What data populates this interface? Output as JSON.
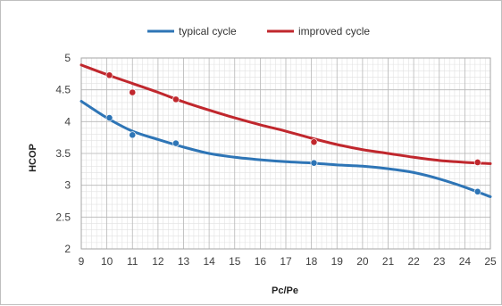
{
  "chart_data": {
    "type": "line",
    "xlabel": "Pc/Pe",
    "ylabel": "HCOP",
    "xlim": [
      9,
      25
    ],
    "ylim": [
      2,
      5
    ],
    "x_ticks": [
      9,
      10,
      11,
      12,
      13,
      14,
      15,
      16,
      17,
      18,
      19,
      20,
      21,
      22,
      23,
      24,
      25
    ],
    "y_ticks": [
      "2",
      "2.5",
      "3",
      "3.5",
      "4",
      "4.5",
      "5"
    ],
    "grid": true,
    "legend_position": "top",
    "series": [
      {
        "name": "typical cycle",
        "color": "#2e75b6",
        "points": [
          {
            "x": 10.1,
            "y": 4.06
          },
          {
            "x": 11.0,
            "y": 3.79
          },
          {
            "x": 12.7,
            "y": 3.66
          },
          {
            "x": 18.1,
            "y": 3.35
          },
          {
            "x": 24.5,
            "y": 2.9
          }
        ],
        "trend": [
          {
            "x": 9,
            "y": 4.32
          },
          {
            "x": 10,
            "y": 4.06
          },
          {
            "x": 11,
            "y": 3.85
          },
          {
            "x": 12,
            "y": 3.72
          },
          {
            "x": 13,
            "y": 3.6
          },
          {
            "x": 14,
            "y": 3.5
          },
          {
            "x": 15,
            "y": 3.44
          },
          {
            "x": 16,
            "y": 3.4
          },
          {
            "x": 17,
            "y": 3.37
          },
          {
            "x": 18,
            "y": 3.35
          },
          {
            "x": 19,
            "y": 3.32
          },
          {
            "x": 20,
            "y": 3.3
          },
          {
            "x": 21,
            "y": 3.26
          },
          {
            "x": 22,
            "y": 3.2
          },
          {
            "x": 23,
            "y": 3.1
          },
          {
            "x": 24,
            "y": 2.97
          },
          {
            "x": 25,
            "y": 2.82
          }
        ]
      },
      {
        "name": "improved cycle",
        "color": "#c0272d",
        "points": [
          {
            "x": 10.1,
            "y": 4.73
          },
          {
            "x": 11.0,
            "y": 4.46
          },
          {
            "x": 12.7,
            "y": 4.35
          },
          {
            "x": 18.1,
            "y": 3.68
          },
          {
            "x": 24.5,
            "y": 3.36
          }
        ],
        "trend": [
          {
            "x": 9,
            "y": 4.89
          },
          {
            "x": 10,
            "y": 4.74
          },
          {
            "x": 11,
            "y": 4.6
          },
          {
            "x": 12,
            "y": 4.46
          },
          {
            "x": 13,
            "y": 4.31
          },
          {
            "x": 14,
            "y": 4.18
          },
          {
            "x": 15,
            "y": 4.06
          },
          {
            "x": 16,
            "y": 3.95
          },
          {
            "x": 17,
            "y": 3.85
          },
          {
            "x": 18,
            "y": 3.74
          },
          {
            "x": 19,
            "y": 3.64
          },
          {
            "x": 20,
            "y": 3.56
          },
          {
            "x": 21,
            "y": 3.5
          },
          {
            "x": 22,
            "y": 3.44
          },
          {
            "x": 23,
            "y": 3.39
          },
          {
            "x": 24,
            "y": 3.36
          },
          {
            "x": 25,
            "y": 3.34
          }
        ]
      }
    ]
  }
}
